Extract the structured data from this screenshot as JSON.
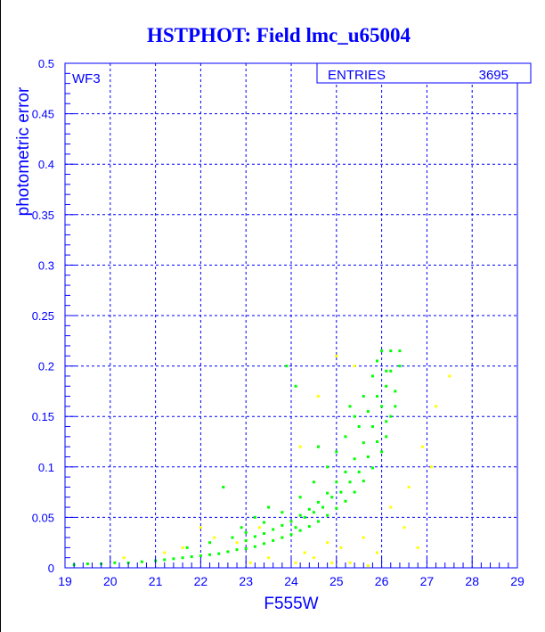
{
  "chart_data": {
    "type": "scatter",
    "title": "HSTPHOT: Field lmc_u65004",
    "xlabel": "F555W",
    "ylabel": "photometric error",
    "xlim": [
      19,
      29
    ],
    "ylim": [
      0,
      0.5
    ],
    "x_ticks": [
      "19",
      "20",
      "21",
      "22",
      "23",
      "24",
      "25",
      "26",
      "27",
      "28",
      "29"
    ],
    "y_ticks": [
      "0",
      "0.05",
      "0.1",
      "0.15",
      "0.2",
      "0.25",
      "0.3",
      "0.35",
      "0.4",
      "0.45",
      "0.5"
    ],
    "grid": true,
    "annotation": "WF3",
    "stats_box": {
      "label": "ENTRIES",
      "value": "3695"
    },
    "colors": {
      "axis": "#0000ff",
      "grid": "#0000ff",
      "title": "#0000ff",
      "series_main": "#00ff00",
      "series_other": "#ffff00"
    },
    "series": [
      {
        "color": "#00ff00",
        "points": [
          [
            19.2,
            0.003
          ],
          [
            19.5,
            0.004
          ],
          [
            19.8,
            0.004
          ],
          [
            20.1,
            0.005
          ],
          [
            20.4,
            0.005
          ],
          [
            20.7,
            0.006
          ],
          [
            21.0,
            0.007
          ],
          [
            21.2,
            0.008
          ],
          [
            21.4,
            0.009
          ],
          [
            21.6,
            0.01
          ],
          [
            21.8,
            0.011
          ],
          [
            22.0,
            0.012
          ],
          [
            22.2,
            0.013
          ],
          [
            22.4,
            0.014
          ],
          [
            22.6,
            0.016
          ],
          [
            22.8,
            0.018
          ],
          [
            23.0,
            0.019
          ],
          [
            23.2,
            0.021
          ],
          [
            23.4,
            0.024
          ],
          [
            23.6,
            0.027
          ],
          [
            23.8,
            0.03
          ],
          [
            24.0,
            0.033
          ],
          [
            24.2,
            0.037
          ],
          [
            24.4,
            0.041
          ],
          [
            24.6,
            0.046
          ],
          [
            24.8,
            0.052
          ],
          [
            25.0,
            0.059
          ],
          [
            25.2,
            0.066
          ],
          [
            25.4,
            0.075
          ],
          [
            25.6,
            0.086
          ],
          [
            25.8,
            0.099
          ],
          [
            26.0,
            0.115
          ],
          [
            26.1,
            0.13
          ],
          [
            26.2,
            0.15
          ],
          [
            26.3,
            0.175
          ],
          [
            26.4,
            0.2
          ],
          [
            23.0,
            0.035
          ],
          [
            23.4,
            0.045
          ],
          [
            23.8,
            0.055
          ],
          [
            24.2,
            0.07
          ],
          [
            24.5,
            0.085
          ],
          [
            24.8,
            0.1
          ],
          [
            25.0,
            0.115
          ],
          [
            25.2,
            0.13
          ],
          [
            25.4,
            0.15
          ],
          [
            25.6,
            0.17
          ],
          [
            25.8,
            0.19
          ],
          [
            25.9,
            0.205
          ],
          [
            26.0,
            0.215
          ],
          [
            26.2,
            0.215
          ],
          [
            26.4,
            0.215
          ],
          [
            23.0,
            0.027
          ],
          [
            23.2,
            0.031
          ],
          [
            23.4,
            0.034
          ],
          [
            23.6,
            0.038
          ],
          [
            23.8,
            0.042
          ],
          [
            24.0,
            0.046
          ],
          [
            24.2,
            0.052
          ],
          [
            24.4,
            0.058
          ],
          [
            24.6,
            0.065
          ],
          [
            24.8,
            0.074
          ],
          [
            25.0,
            0.085
          ],
          [
            25.2,
            0.095
          ],
          [
            25.4,
            0.108
          ],
          [
            25.6,
            0.124
          ],
          [
            25.8,
            0.14
          ],
          [
            26.0,
            0.16
          ],
          [
            26.1,
            0.18
          ],
          [
            26.2,
            0.195
          ],
          [
            24.1,
            0.04
          ],
          [
            24.3,
            0.05
          ],
          [
            24.5,
            0.055
          ],
          [
            24.7,
            0.06
          ],
          [
            24.9,
            0.07
          ],
          [
            25.1,
            0.075
          ],
          [
            25.3,
            0.085
          ],
          [
            25.5,
            0.095
          ],
          [
            25.7,
            0.11
          ],
          [
            25.9,
            0.125
          ],
          [
            26.1,
            0.145
          ],
          [
            26.3,
            0.16
          ],
          [
            25.5,
            0.14
          ],
          [
            25.7,
            0.155
          ],
          [
            25.9,
            0.17
          ],
          [
            26.1,
            0.195
          ],
          [
            22.5,
            0.08
          ],
          [
            23.9,
            0.2
          ],
          [
            24.1,
            0.18
          ],
          [
            23.5,
            0.06
          ],
          [
            22.9,
            0.04
          ],
          [
            24.6,
            0.12
          ],
          [
            25.3,
            0.16
          ],
          [
            22.2,
            0.025
          ],
          [
            23.2,
            0.05
          ],
          [
            21.7,
            0.02
          ],
          [
            22.7,
            0.03
          ]
        ]
      },
      {
        "color": "#ffff00",
        "points": [
          [
            20.3,
            0.01
          ],
          [
            21.2,
            0.015
          ],
          [
            21.6,
            0.02
          ],
          [
            22.3,
            0.03
          ],
          [
            22.8,
            0.025
          ],
          [
            23.1,
            0.005
          ],
          [
            23.5,
            0.01
          ],
          [
            23.8,
            0.03
          ],
          [
            24.1,
            0.005
          ],
          [
            24.3,
            0.015
          ],
          [
            24.5,
            0.01
          ],
          [
            24.8,
            0.025
          ],
          [
            25.1,
            0.02
          ],
          [
            25.3,
            0.005
          ],
          [
            25.6,
            0.03
          ],
          [
            25.9,
            0.015
          ],
          [
            26.2,
            0.06
          ],
          [
            26.6,
            0.08
          ],
          [
            26.9,
            0.12
          ],
          [
            27.2,
            0.16
          ],
          [
            27.5,
            0.19
          ],
          [
            27.1,
            0.1
          ],
          [
            26.5,
            0.04
          ],
          [
            25.0,
            0.21
          ],
          [
            24.6,
            0.17
          ],
          [
            24.2,
            0.12
          ],
          [
            25.4,
            0.2
          ],
          [
            26.8,
            0.02
          ],
          [
            22.0,
            0.04
          ],
          [
            23.3,
            0.04
          ],
          [
            24.9,
            0.005
          ],
          [
            25.7,
            0.002
          ]
        ]
      }
    ]
  }
}
